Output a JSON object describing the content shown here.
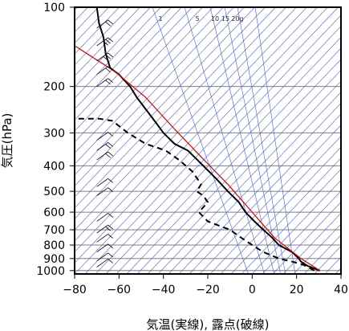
{
  "chart_data": {
    "type": "line",
    "xlabel": "気温(実線), 露点(破線)",
    "ylabel": "気圧(hPa)",
    "xlim": [
      -80,
      40
    ],
    "ylim": [
      1030,
      100
    ],
    "y_scale": "log",
    "x_ticks": [
      "−80",
      "−60",
      "−40",
      "−20",
      "0",
      "20",
      "40"
    ],
    "y_ticks": [
      "100",
      "200",
      "300",
      "400",
      "500",
      "600",
      "700",
      "800",
      "900",
      "1000"
    ],
    "mixing_ratio_labels": [
      "1",
      "5",
      "10",
      "15",
      "20g"
    ],
    "grid": true,
    "series": [
      {
        "style": "solid",
        "color": "#000000",
        "points": [
          [
            30.5,
            1000
          ],
          [
            25,
            960
          ],
          [
            22,
            925
          ],
          [
            21,
            900
          ],
          [
            18,
            850
          ],
          [
            12,
            800
          ],
          [
            9,
            750
          ],
          [
            5,
            700
          ],
          [
            1,
            650
          ],
          [
            -3,
            600
          ],
          [
            -6,
            550
          ],
          [
            -11,
            500
          ],
          [
            -16,
            450
          ],
          [
            -22,
            400
          ],
          [
            -29,
            350
          ],
          [
            -35,
            330
          ],
          [
            -40,
            300
          ],
          [
            -44,
            270
          ],
          [
            -47,
            250
          ],
          [
            -52,
            220
          ],
          [
            -55,
            200
          ],
          [
            -60,
            180
          ],
          [
            -64,
            170
          ],
          [
            -66,
            150
          ],
          [
            -67,
            130
          ],
          [
            -69,
            115
          ],
          [
            -70,
            100
          ]
        ]
      },
      {
        "style": "dashed",
        "color": "#000000",
        "points": [
          [
            28,
            1000
          ],
          [
            23,
            950
          ],
          [
            18,
            925
          ],
          [
            12,
            900
          ],
          [
            5,
            850
          ],
          [
            0,
            800
          ],
          [
            -5,
            750
          ],
          [
            -10,
            700
          ],
          [
            -20,
            650
          ],
          [
            -24,
            600
          ],
          [
            -20,
            550
          ],
          [
            -22,
            520
          ],
          [
            -25,
            500
          ],
          [
            -23,
            470
          ],
          [
            -27,
            420
          ],
          [
            -33,
            380
          ],
          [
            -39,
            350
          ],
          [
            -48,
            330
          ],
          [
            -56,
            300
          ],
          [
            -63,
            270
          ],
          [
            -69,
            265
          ],
          [
            -80,
            265
          ]
        ]
      },
      {
        "style": "solid",
        "color": "#dd0000",
        "points": [
          [
            30.5,
            1000
          ],
          [
            22,
            900
          ],
          [
            10,
            750
          ],
          [
            0,
            600
          ],
          [
            -11,
            470
          ],
          [
            -23,
            370
          ],
          [
            -35,
            290
          ],
          [
            -48,
            220
          ],
          [
            -62,
            175
          ],
          [
            -80,
            140
          ]
        ]
      }
    ],
    "wind_barbs": [
      {
        "p": 100,
        "kt": 15
      },
      {
        "p": 120,
        "kt": 20
      },
      {
        "p": 140,
        "kt": 25
      },
      {
        "p": 160,
        "kt": 30
      },
      {
        "p": 180,
        "kt": 20
      },
      {
        "p": 200,
        "kt": 15
      },
      {
        "p": 320,
        "kt": 10
      },
      {
        "p": 350,
        "kt": 15
      },
      {
        "p": 380,
        "kt": 15
      },
      {
        "p": 480,
        "kt": 10
      },
      {
        "p": 520,
        "kt": 10
      },
      {
        "p": 650,
        "kt": 10
      },
      {
        "p": 720,
        "kt": 15
      },
      {
        "p": 780,
        "kt": 10
      },
      {
        "p": 850,
        "kt": 10
      },
      {
        "p": 920,
        "kt": 10
      },
      {
        "p": 970,
        "kt": 5
      }
    ]
  }
}
